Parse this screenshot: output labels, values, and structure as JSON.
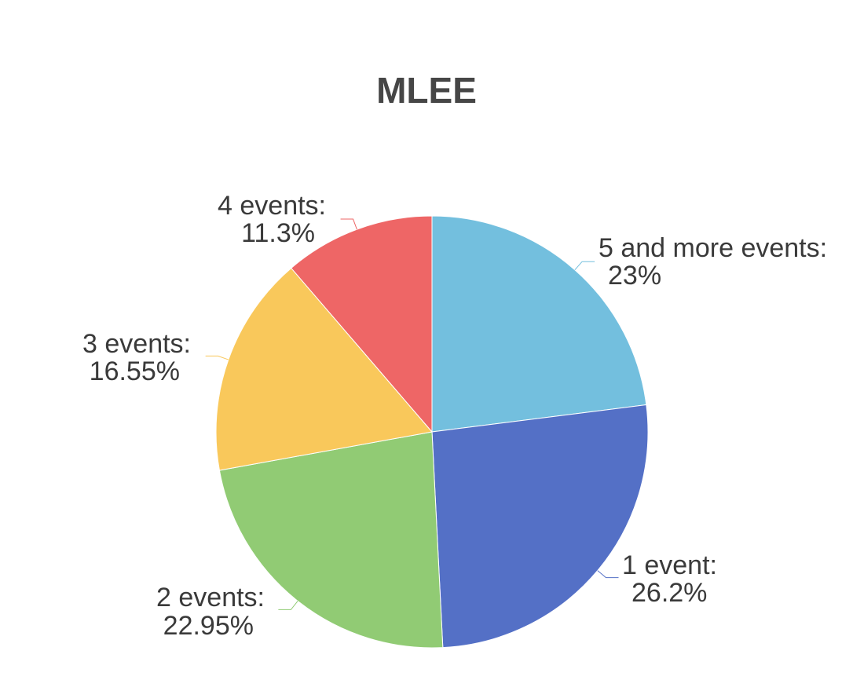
{
  "chart_data": {
    "type": "pie",
    "title": "MLEE",
    "slices": [
      {
        "name": "5 and more events",
        "value": 23,
        "label_line1": "5 and more events:",
        "label_line2": "23%",
        "color": "#73bfde"
      },
      {
        "name": "1 event",
        "value": 26.2,
        "label_line1": "1 event:",
        "label_line2": "26.2%",
        "color": "#5470c6"
      },
      {
        "name": "2 events",
        "value": 22.95,
        "label_line1": "2 events:",
        "label_line2": "22.95%",
        "color": "#91cb74"
      },
      {
        "name": "3 events",
        "value": 16.55,
        "label_line1": "3 events:",
        "label_line2": "16.55%",
        "color": "#f9c85b"
      },
      {
        "name": "4 events",
        "value": 11.3,
        "label_line1": "4 events:",
        "label_line2": "11.3%",
        "color": "#ee6666"
      }
    ]
  }
}
